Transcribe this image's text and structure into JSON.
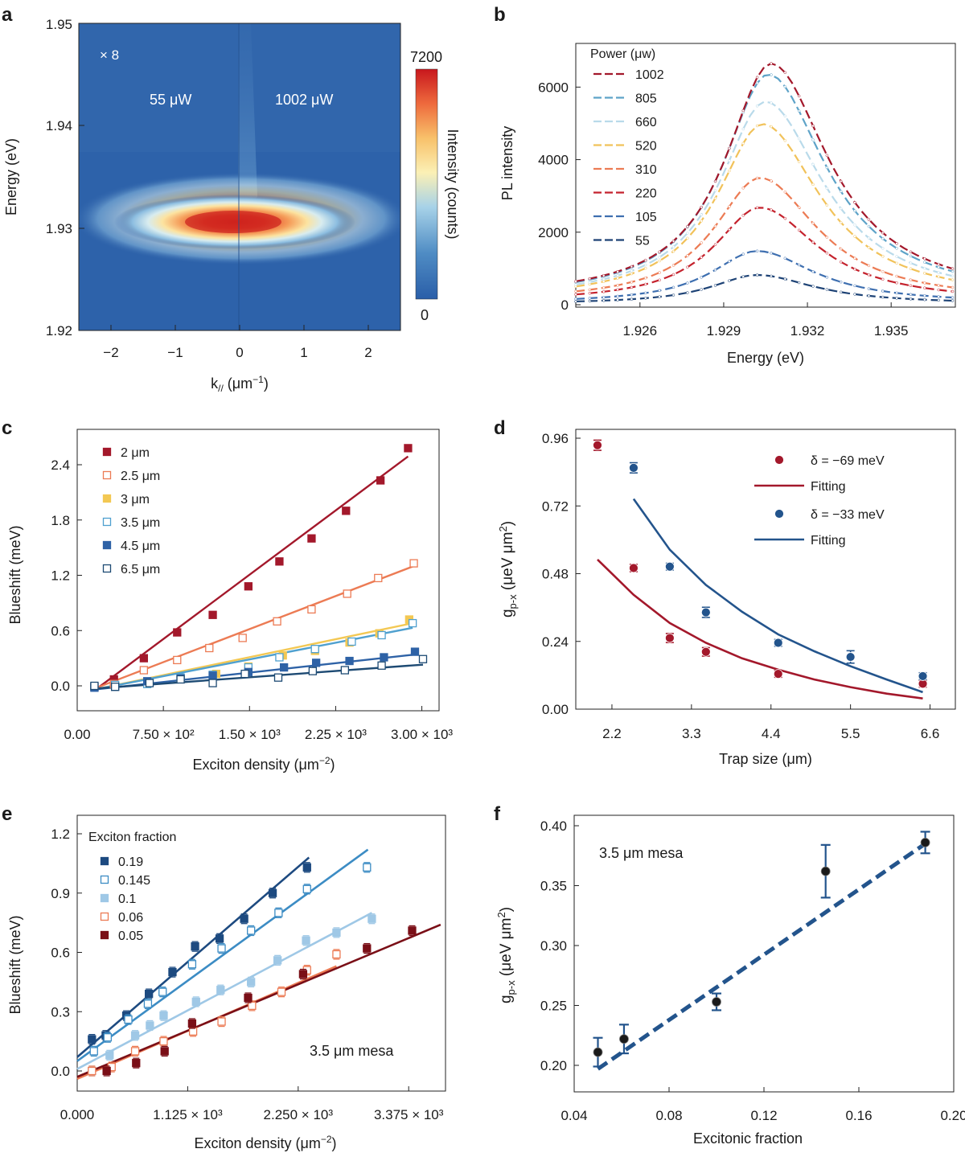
{
  "chart_data": [
    {
      "panel": "a",
      "type": "heatmap",
      "xlabel": "k// (μm−1)",
      "ylabel": "Energy (eV)",
      "xlim": [
        -2.5,
        2.5
      ],
      "ylim": [
        1.92,
        1.95
      ],
      "xticks": [
        "−2",
        "−1",
        "0",
        "1",
        "2"
      ],
      "yticks": [
        "1.92",
        "1.93",
        "1.94",
        "1.95"
      ],
      "annotations": [
        "× 8",
        "55 μW",
        "1002 μW"
      ],
      "colorbar": {
        "label": "Intensity (counts)",
        "max_label": "7200",
        "min_label": "0",
        "range": [
          0,
          7200
        ]
      },
      "peak": {
        "k": 0.1,
        "energy": 1.9303
      },
      "colors": {
        "low": "#2a5ea8",
        "mid": "#fbf0b5",
        "high": "#d42a1f"
      }
    },
    {
      "panel": "b",
      "type": "line",
      "xlabel": "Energy (eV)",
      "ylabel": "PL intensity",
      "xlim": [
        1.9237,
        1.9373
      ],
      "ylim": [
        -50,
        7000
      ],
      "xticks": [
        "1.926",
        "1.929",
        "1.932",
        "1.935"
      ],
      "yticks": [
        "0",
        "2000",
        "4000",
        "6000"
      ],
      "legend_title": "Power (μw)",
      "series": [
        {
          "name": "1002",
          "peak": 6650,
          "base": 450,
          "peak_e": 1.9307,
          "color": "#a3182b"
        },
        {
          "name": "805",
          "peak": 6350,
          "base": 400,
          "peak_e": 1.9306,
          "color": "#5ea3c8"
        },
        {
          "name": "660",
          "peak": 5600,
          "base": 350,
          "peak_e": 1.9305,
          "color": "#b9daea"
        },
        {
          "name": "520",
          "peak": 4980,
          "base": 300,
          "peak_e": 1.9304,
          "color": "#f1c25a"
        },
        {
          "name": "310",
          "peak": 3500,
          "base": 230,
          "peak_e": 1.9303,
          "color": "#ec7b54"
        },
        {
          "name": "220",
          "peak": 2680,
          "base": 180,
          "peak_e": 1.9303,
          "color": "#c4222d"
        },
        {
          "name": "105",
          "peak": 1480,
          "base": 100,
          "peak_e": 1.9302,
          "color": "#3e6fb0"
        },
        {
          "name": "55",
          "peak": 820,
          "base": 60,
          "peak_e": 1.9302,
          "color": "#1d4275"
        }
      ]
    },
    {
      "panel": "c",
      "type": "scatter",
      "xlabel": "Exciton density (μm−2)",
      "ylabel": "Blueshift (meV)",
      "xlim": [
        0,
        3150
      ],
      "ylim": [
        -0.22,
        2.7
      ],
      "xticks": [
        "0.00",
        "7.50 × 10²",
        "1.50 × 10³",
        "2.25 × 10³",
        "3.00 × 10³"
      ],
      "yticks": [
        "0.0",
        "0.6",
        "1.2",
        "1.8",
        "2.4"
      ],
      "series": [
        {
          "name": "2 μm",
          "color": "#a3182b",
          "filled": true,
          "x": [
            150,
            320,
            580,
            870,
            1180,
            1490,
            1760,
            2040,
            2340,
            2640,
            2880
          ],
          "y": [
            -0.01,
            0.07,
            0.3,
            0.58,
            0.77,
            1.08,
            1.35,
            1.6,
            1.9,
            2.23,
            2.58
          ],
          "fit": [
            [
              150,
              -0.05
            ],
            [
              2880,
              2.49
            ]
          ]
        },
        {
          "name": "2.5 μm",
          "color": "#ec7b54",
          "filled": false,
          "x": [
            150,
            320,
            580,
            870,
            1150,
            1440,
            1740,
            2040,
            2350,
            2620,
            2930
          ],
          "y": [
            -0.01,
            0.02,
            0.17,
            0.28,
            0.41,
            0.52,
            0.7,
            0.83,
            1.0,
            1.17,
            1.33
          ],
          "fit": [
            [
              150,
              -0.03
            ],
            [
              2930,
              1.3
            ]
          ]
        },
        {
          "name": "3 μm",
          "color": "#f3c853",
          "filled": true,
          "x": [
            330,
            610,
            900,
            1210,
            1490,
            1790,
            2070,
            2370,
            2630,
            2890
          ],
          "y": [
            0.0,
            0.04,
            0.08,
            0.13,
            0.21,
            0.33,
            0.38,
            0.47,
            0.57,
            0.72
          ],
          "fit": [
            [
              150,
              -0.04
            ],
            [
              2920,
              0.68
            ]
          ]
        },
        {
          "name": "3.5 μm",
          "color": "#4fa0cf",
          "filled": false,
          "x": [
            150,
            330,
            610,
            900,
            1180,
            1490,
            1760,
            2070,
            2390,
            2650,
            2920
          ],
          "y": [
            -0.01,
            0.01,
            0.02,
            0.09,
            0.12,
            0.2,
            0.31,
            0.4,
            0.48,
            0.55,
            0.68
          ],
          "fit": [
            [
              150,
              -0.04
            ],
            [
              2920,
              0.63
            ]
          ]
        },
        {
          "name": "4.5 μm",
          "color": "#2e62a6",
          "filled": true,
          "x": [
            150,
            330,
            610,
            900,
            1180,
            1490,
            1800,
            2080,
            2370,
            2670,
            2940
          ],
          "y": [
            -0.02,
            -0.01,
            0.05,
            0.08,
            0.11,
            0.15,
            0.2,
            0.25,
            0.27,
            0.31,
            0.37
          ],
          "fit": [
            [
              150,
              -0.04
            ],
            [
              2940,
              0.34
            ]
          ]
        },
        {
          "name": "6.5 μm",
          "color": "#1d4a73",
          "filled": false,
          "x": [
            150,
            330,
            630,
            900,
            1180,
            1460,
            1750,
            2050,
            2330,
            2650,
            3010
          ],
          "y": [
            0.0,
            -0.01,
            0.03,
            0.07,
            0.03,
            0.13,
            0.09,
            0.16,
            0.17,
            0.22,
            0.29
          ],
          "fit": [
            [
              150,
              -0.03
            ],
            [
              3010,
              0.23
            ]
          ]
        }
      ]
    },
    {
      "panel": "d",
      "type": "scatter",
      "xlabel": "Trap size (μm)",
      "ylabel": "gp-x (μeV μm²)",
      "xlim": [
        1.7,
        6.95
      ],
      "ylim": [
        0,
        0.98
      ],
      "xticks": [
        "2.2",
        "3.3",
        "4.4",
        "5.5",
        "6.6"
      ],
      "yticks": [
        "0.00",
        "0.24",
        "0.48",
        "0.72",
        "0.96"
      ],
      "series": [
        {
          "name": "δ = −69 meV",
          "fit_name": "Fitting",
          "color": "#a3182b",
          "x": [
            2.0,
            2.5,
            3.0,
            3.5,
            4.5,
            6.5
          ],
          "y": [
            0.935,
            0.5,
            0.252,
            0.203,
            0.125,
            0.09
          ],
          "err": [
            0.018,
            0.013,
            0.016,
            0.015,
            0.012,
            0.012
          ],
          "fit_x": [
            2.0,
            2.5,
            3.0,
            3.5,
            4.0,
            4.5,
            5.0,
            5.5,
            6.0,
            6.5
          ],
          "fit_y": [
            0.53,
            0.405,
            0.305,
            0.235,
            0.18,
            0.14,
            0.105,
            0.078,
            0.055,
            0.038
          ]
        },
        {
          "name": "δ = −33 meV",
          "fit_name": "Fitting",
          "color": "#23548c",
          "x": [
            2.5,
            3.0,
            3.5,
            4.5,
            5.5,
            6.5
          ],
          "y": [
            0.855,
            0.505,
            0.343,
            0.235,
            0.185,
            0.117
          ],
          "err": [
            0.018,
            0.012,
            0.018,
            0.012,
            0.022,
            0.012
          ],
          "fit_x": [
            2.5,
            3.0,
            3.5,
            4.0,
            4.5,
            5.0,
            5.5,
            6.0,
            6.5
          ],
          "fit_y": [
            0.745,
            0.565,
            0.44,
            0.345,
            0.265,
            0.205,
            0.152,
            0.105,
            0.06
          ]
        }
      ]
    },
    {
      "panel": "e",
      "type": "scatter",
      "xlabel": "Exciton density (μm−2)",
      "ylabel": "Blueshift (meV)",
      "xlim": [
        0,
        3750
      ],
      "ylim": [
        -0.09,
        1.29
      ],
      "xticks": [
        "0.000",
        "1.125 × 10³",
        "2.250 × 10³",
        "3.375 × 10³"
      ],
      "yticks": [
        "0.0",
        "0.3",
        "0.6",
        "0.9",
        "1.2"
      ],
      "legend_title": "Exciton fraction",
      "annotation": "3.5 μm mesa",
      "series": [
        {
          "name": "0.19",
          "color": "#1d4a80",
          "filled": true,
          "x": [
            150,
            290,
            500,
            730,
            970,
            1200,
            1450,
            1700,
            1990,
            2340
          ],
          "y": [
            0.16,
            0.18,
            0.28,
            0.39,
            0.5,
            0.63,
            0.67,
            0.77,
            0.9,
            1.03
          ],
          "fit": [
            [
              0,
              0.07
            ],
            [
              2360,
              1.08
            ]
          ]
        },
        {
          "name": "0.145",
          "color": "#3c8cc4",
          "filled": false,
          "x": [
            170,
            310,
            520,
            720,
            870,
            1170,
            1470,
            1770,
            2050,
            2340,
            2950
          ],
          "y": [
            0.1,
            0.17,
            0.26,
            0.34,
            0.4,
            0.54,
            0.62,
            0.71,
            0.8,
            0.92,
            1.03
          ],
          "fit": [
            [
              0,
              0.05
            ],
            [
              2960,
              1.12
            ]
          ]
        },
        {
          "name": "0.1",
          "color": "#9fc8e6",
          "filled": true,
          "x": [
            150,
            330,
            590,
            740,
            880,
            1210,
            1460,
            1770,
            2040,
            2330,
            2640,
            3000
          ],
          "y": [
            0.0,
            0.08,
            0.18,
            0.23,
            0.28,
            0.35,
            0.41,
            0.45,
            0.56,
            0.66,
            0.7,
            0.77
          ],
          "fit": [
            [
              0,
              0.01
            ],
            [
              3000,
              0.8
            ]
          ]
        },
        {
          "name": "0.06",
          "color": "#ec7b54",
          "filled": false,
          "x": [
            150,
            350,
            590,
            880,
            1180,
            1470,
            1780,
            2080,
            2340,
            2640
          ],
          "y": [
            0.0,
            0.02,
            0.1,
            0.15,
            0.2,
            0.25,
            0.33,
            0.4,
            0.51,
            0.59
          ],
          "fit": [
            [
              0,
              -0.04
            ],
            [
              2640,
              0.53
            ]
          ]
        },
        {
          "name": "0.05",
          "color": "#7a0f17",
          "filled": true,
          "x": [
            300,
            600,
            890,
            1170,
            1740,
            2300,
            2950,
            3410
          ],
          "y": [
            0.0,
            0.04,
            0.1,
            0.24,
            0.37,
            0.49,
            0.62,
            0.71
          ],
          "fit": [
            [
              0,
              -0.03
            ],
            [
              3700,
              0.74
            ]
          ]
        }
      ]
    },
    {
      "panel": "f",
      "type": "scatter",
      "xlabel": "Excitonic fraction",
      "ylabel": "gp-x (μeV μm²)",
      "xlim": [
        0.04,
        0.2
      ],
      "ylim": [
        0.18,
        0.405
      ],
      "xticks": [
        "0.04",
        "0.08",
        "0.12",
        "0.16",
        "0.20"
      ],
      "yticks": [
        "0.20",
        "0.25",
        "0.30",
        "0.35",
        "0.40"
      ],
      "annotation": "3.5 μm mesa",
      "series": [
        {
          "name": "",
          "color": "#1a1a1a",
          "error_color": "#23548c",
          "x": [
            0.05,
            0.061,
            0.1,
            0.146,
            0.188
          ],
          "y": [
            0.211,
            0.222,
            0.253,
            0.362,
            0.386
          ],
          "err": [
            0.012,
            0.012,
            0.007,
            0.022,
            0.009
          ],
          "fit": [
            [
              0.05,
              0.197
            ],
            [
              0.188,
              0.385
            ]
          ]
        }
      ]
    }
  ]
}
